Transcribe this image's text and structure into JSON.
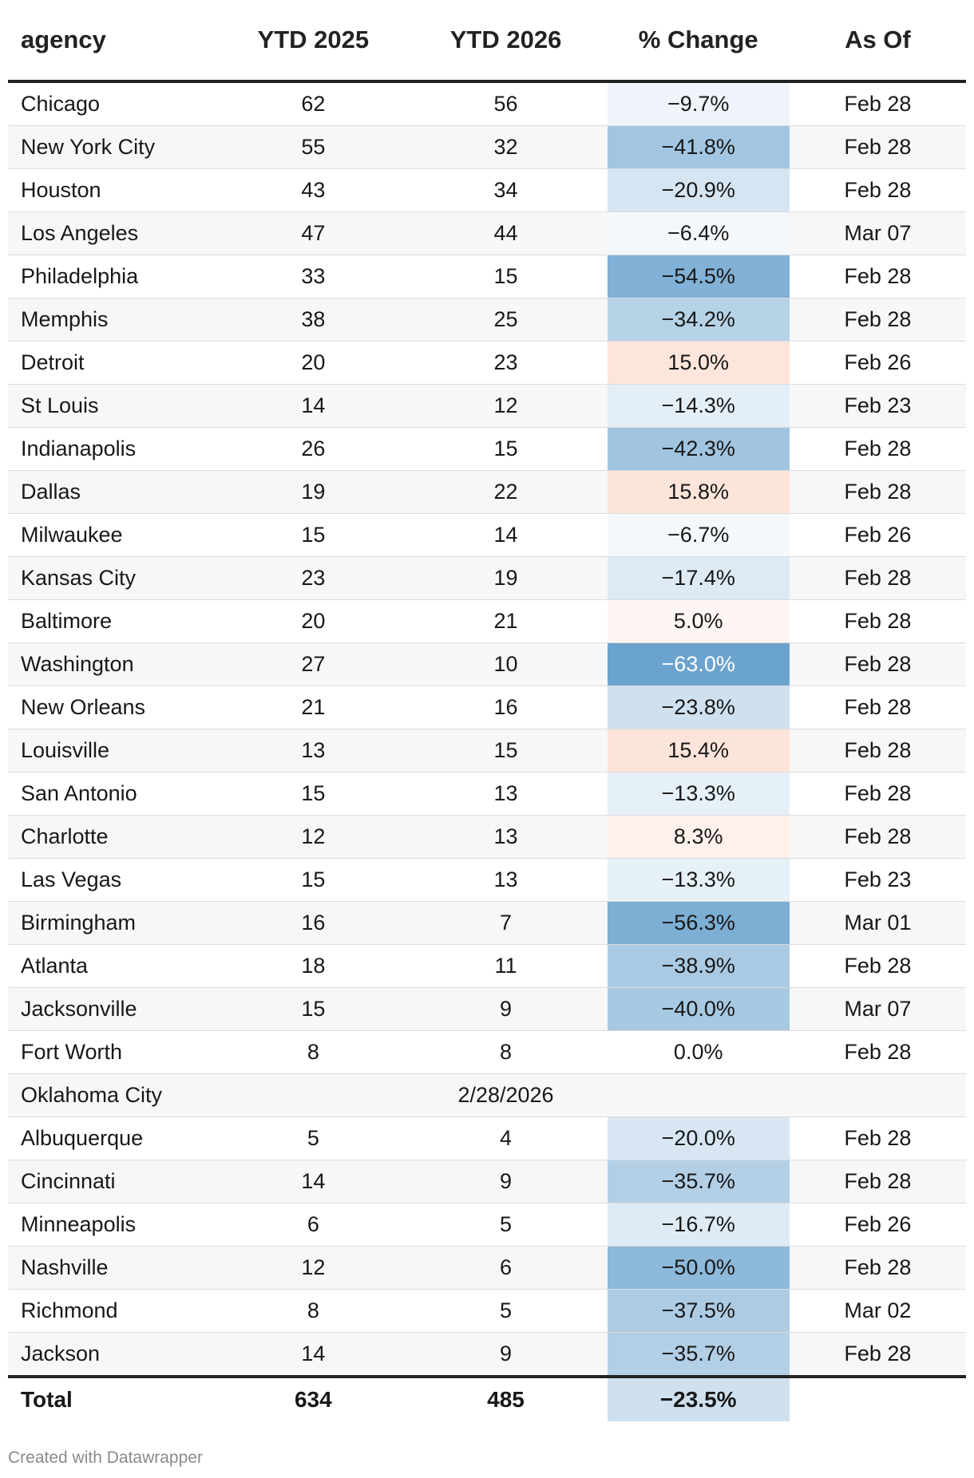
{
  "chart_data": {
    "type": "table",
    "columns": [
      "agency",
      "YTD 2025",
      "YTD 2026",
      "% Change",
      "As Of"
    ],
    "rows": [
      {
        "agency": "Chicago",
        "ytd2025": "62",
        "ytd2026": "56",
        "pct": "−9.7%",
        "pct_value": -9.7,
        "asof": "Feb 28"
      },
      {
        "agency": "New York City",
        "ytd2025": "55",
        "ytd2026": "32",
        "pct": "−41.8%",
        "pct_value": -41.8,
        "asof": "Feb 28"
      },
      {
        "agency": "Houston",
        "ytd2025": "43",
        "ytd2026": "34",
        "pct": "−20.9%",
        "pct_value": -20.9,
        "asof": "Feb 28"
      },
      {
        "agency": "Los Angeles",
        "ytd2025": "47",
        "ytd2026": "44",
        "pct": "−6.4%",
        "pct_value": -6.4,
        "asof": "Mar 07"
      },
      {
        "agency": "Philadelphia",
        "ytd2025": "33",
        "ytd2026": "15",
        "pct": "−54.5%",
        "pct_value": -54.5,
        "asof": "Feb 28"
      },
      {
        "agency": "Memphis",
        "ytd2025": "38",
        "ytd2026": "25",
        "pct": "−34.2%",
        "pct_value": -34.2,
        "asof": "Feb 28"
      },
      {
        "agency": "Detroit",
        "ytd2025": "20",
        "ytd2026": "23",
        "pct": "15.0%",
        "pct_value": 15.0,
        "asof": "Feb 26"
      },
      {
        "agency": "St Louis",
        "ytd2025": "14",
        "ytd2026": "12",
        "pct": "−14.3%",
        "pct_value": -14.3,
        "asof": "Feb 23"
      },
      {
        "agency": "Indianapolis",
        "ytd2025": "26",
        "ytd2026": "15",
        "pct": "−42.3%",
        "pct_value": -42.3,
        "asof": "Feb 28"
      },
      {
        "agency": "Dallas",
        "ytd2025": "19",
        "ytd2026": "22",
        "pct": "15.8%",
        "pct_value": 15.8,
        "asof": "Feb 28"
      },
      {
        "agency": "Milwaukee",
        "ytd2025": "15",
        "ytd2026": "14",
        "pct": "−6.7%",
        "pct_value": -6.7,
        "asof": "Feb 26"
      },
      {
        "agency": "Kansas City",
        "ytd2025": "23",
        "ytd2026": "19",
        "pct": "−17.4%",
        "pct_value": -17.4,
        "asof": "Feb 28"
      },
      {
        "agency": "Baltimore",
        "ytd2025": "20",
        "ytd2026": "21",
        "pct": "5.0%",
        "pct_value": 5.0,
        "asof": "Feb 28"
      },
      {
        "agency": "Washington",
        "ytd2025": "27",
        "ytd2026": "10",
        "pct": "−63.0%",
        "pct_value": -63.0,
        "asof": "Feb 28"
      },
      {
        "agency": "New Orleans",
        "ytd2025": "21",
        "ytd2026": "16",
        "pct": "−23.8%",
        "pct_value": -23.8,
        "asof": "Feb 28"
      },
      {
        "agency": "Louisville",
        "ytd2025": "13",
        "ytd2026": "15",
        "pct": "15.4%",
        "pct_value": 15.4,
        "asof": "Feb 28"
      },
      {
        "agency": "San Antonio",
        "ytd2025": "15",
        "ytd2026": "13",
        "pct": "−13.3%",
        "pct_value": -13.3,
        "asof": "Feb 28"
      },
      {
        "agency": "Charlotte",
        "ytd2025": "12",
        "ytd2026": "13",
        "pct": "8.3%",
        "pct_value": 8.3,
        "asof": "Feb 28"
      },
      {
        "agency": "Las Vegas",
        "ytd2025": "15",
        "ytd2026": "13",
        "pct": "−13.3%",
        "pct_value": -13.3,
        "asof": "Feb 23"
      },
      {
        "agency": "Birmingham",
        "ytd2025": "16",
        "ytd2026": "7",
        "pct": "−56.3%",
        "pct_value": -56.3,
        "asof": "Mar 01"
      },
      {
        "agency": "Atlanta",
        "ytd2025": "18",
        "ytd2026": "11",
        "pct": "−38.9%",
        "pct_value": -38.9,
        "asof": "Feb 28"
      },
      {
        "agency": "Jacksonville",
        "ytd2025": "15",
        "ytd2026": "9",
        "pct": "−40.0%",
        "pct_value": -40.0,
        "asof": "Mar 07"
      },
      {
        "agency": "Fort Worth",
        "ytd2025": "8",
        "ytd2026": "8",
        "pct": "0.0%",
        "pct_value": 0.0,
        "asof": "Feb 28"
      },
      {
        "agency": "Oklahoma City",
        "ytd2025": "",
        "ytd2026": "2/28/2026",
        "pct": "",
        "pct_value": null,
        "asof": ""
      },
      {
        "agency": "Albuquerque",
        "ytd2025": "5",
        "ytd2026": "4",
        "pct": "−20.0%",
        "pct_value": -20.0,
        "asof": "Feb 28"
      },
      {
        "agency": "Cincinnati",
        "ytd2025": "14",
        "ytd2026": "9",
        "pct": "−35.7%",
        "pct_value": -35.7,
        "asof": "Feb 28"
      },
      {
        "agency": "Minneapolis",
        "ytd2025": "6",
        "ytd2026": "5",
        "pct": "−16.7%",
        "pct_value": -16.7,
        "asof": "Feb 26"
      },
      {
        "agency": "Nashville",
        "ytd2025": "12",
        "ytd2026": "6",
        "pct": "−50.0%",
        "pct_value": -50.0,
        "asof": "Feb 28"
      },
      {
        "agency": "Richmond",
        "ytd2025": "8",
        "ytd2026": "5",
        "pct": "−37.5%",
        "pct_value": -37.5,
        "asof": "Mar 02"
      },
      {
        "agency": "Jackson",
        "ytd2025": "14",
        "ytd2026": "9",
        "pct": "−35.7%",
        "pct_value": -35.7,
        "asof": "Feb 28"
      }
    ],
    "total": {
      "label": "Total",
      "ytd2025": "634",
      "ytd2026": "485",
      "pct": "−23.5%",
      "pct_value": -23.5
    },
    "colors": {
      "negative": "#4a8fc4",
      "positive": "#f7a888",
      "neutral": "#ffffff"
    }
  },
  "footer": "Created with Datawrapper"
}
